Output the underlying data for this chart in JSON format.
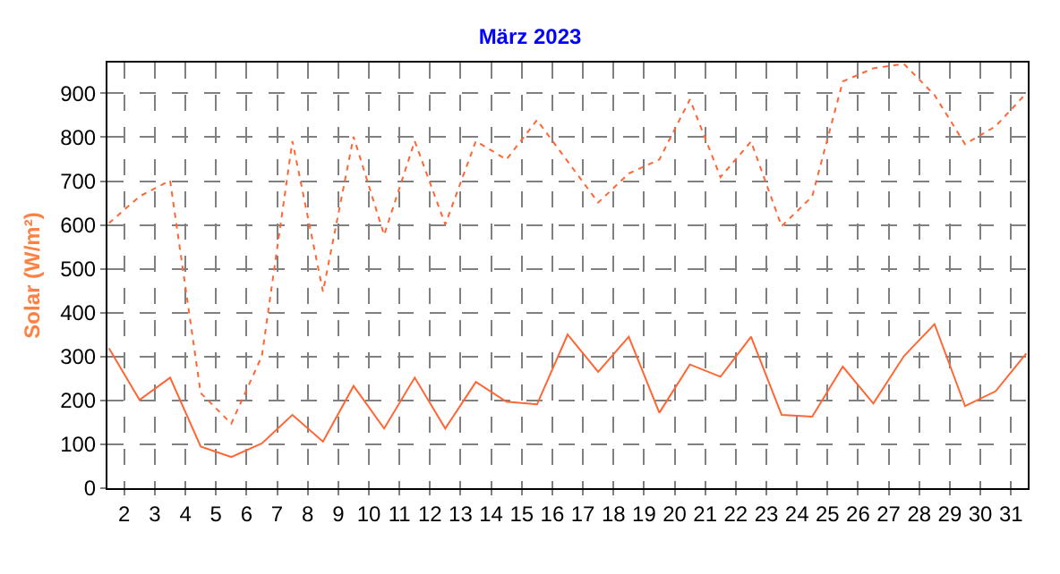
{
  "chart_data": {
    "type": "line",
    "title": "März 2023",
    "ylabel": "Solar (W/m²)",
    "x": [
      1.5,
      2.5,
      3.5,
      4.5,
      5.5,
      6.5,
      7.5,
      8.5,
      9.5,
      10.5,
      11.5,
      12.5,
      13.5,
      14.5,
      15.5,
      16.5,
      17.5,
      18.5,
      19.5,
      20.5,
      21.5,
      22.5,
      23.5,
      24.5,
      25.5,
      26.5,
      27.5,
      28.5,
      29.5,
      30.5,
      31.5
    ],
    "series": [
      {
        "color": "#ff6633",
        "line_style": "solid",
        "values": [
          319,
          201,
          252,
          95,
          71,
          102,
          167,
          106,
          233,
          136,
          252,
          136,
          242,
          197,
          191,
          350,
          265,
          345,
          172,
          282,
          254,
          345,
          167,
          163,
          277,
          193,
          301,
          374,
          187,
          221,
          307
        ]
      },
      {
        "color": "#ff6633",
        "line_style": "dotted",
        "values": [
          604,
          665,
          701,
          217,
          147,
          301,
          791,
          448,
          801,
          577,
          791,
          601,
          791,
          749,
          839,
          745,
          651,
          717,
          749,
          886,
          709,
          790,
          597,
          665,
          927,
          957,
          967,
          896,
          784,
          825,
          900
        ]
      }
    ],
    "xlim": [
      1.45,
      31.55
    ],
    "xticks": [
      2,
      3,
      4,
      5,
      6,
      7,
      8,
      9,
      10,
      11,
      12,
      13,
      14,
      15,
      16,
      17,
      18,
      19,
      20,
      21,
      22,
      23,
      24,
      25,
      26,
      27,
      28,
      29,
      30,
      31
    ],
    "ylim": [
      0,
      970
    ],
    "yticks": [
      0,
      100,
      200,
      300,
      400,
      500,
      600,
      700,
      800,
      900
    ],
    "grid": true,
    "marker": "none"
  }
}
